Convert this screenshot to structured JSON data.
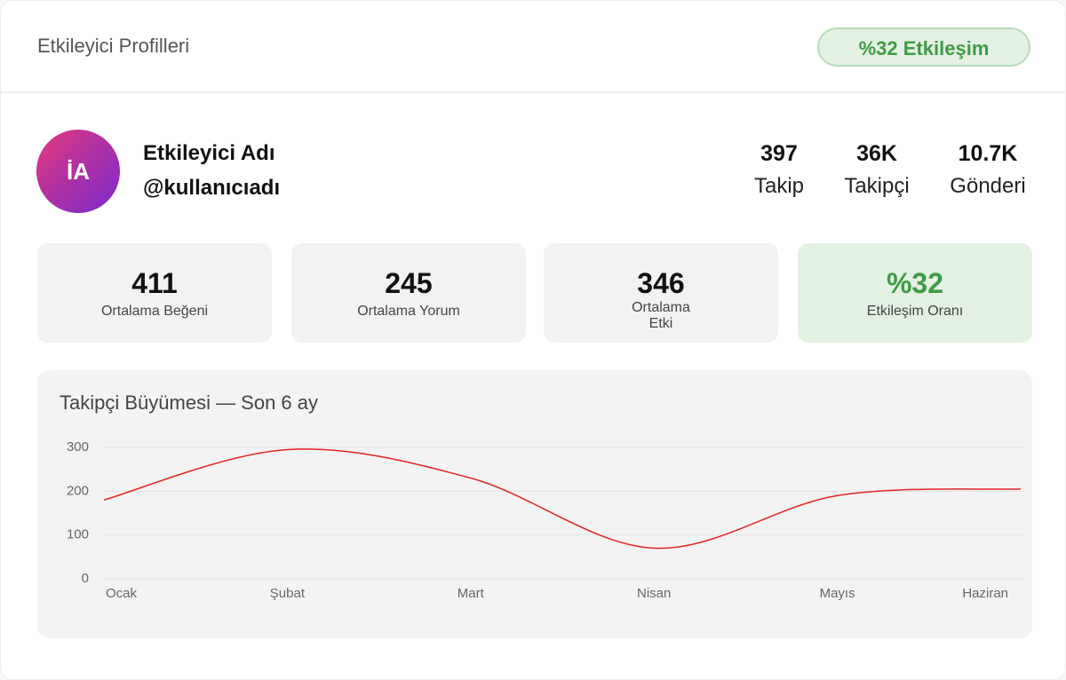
{
  "header": {
    "title": "Etkileyici Profilleri",
    "badge": "%32 Etkileşim"
  },
  "profile": {
    "initials": "İA",
    "name": "Etkileyici Adı",
    "handle": "@kullanıcıadı"
  },
  "stats": [
    {
      "value": "397",
      "label": "Takip"
    },
    {
      "value": "36K",
      "label": "Takipçi"
    },
    {
      "value": "10.7K",
      "label": "Gönderi"
    }
  ],
  "cards": [
    {
      "value": "411",
      "label": "Ortalama Beğeni"
    },
    {
      "value": "245",
      "label": "Ortalama Yorum"
    },
    {
      "value": "346",
      "label": "Ortalama Etki"
    },
    {
      "value": "%32",
      "label": "Etkileşim Oranı"
    }
  ],
  "chart_data": {
    "type": "line",
    "title": "Takipçi Büyümesi — Son 6 ay",
    "categories": [
      "Ocak",
      "Şubat",
      "Mart",
      "Nisan",
      "Mayıs",
      "Haziran"
    ],
    "values": [
      180,
      295,
      230,
      70,
      190,
      205
    ],
    "color": "#e02424",
    "ylim": [
      0,
      300
    ],
    "yticks": [
      0,
      100,
      200,
      300
    ],
    "grid": true
  }
}
